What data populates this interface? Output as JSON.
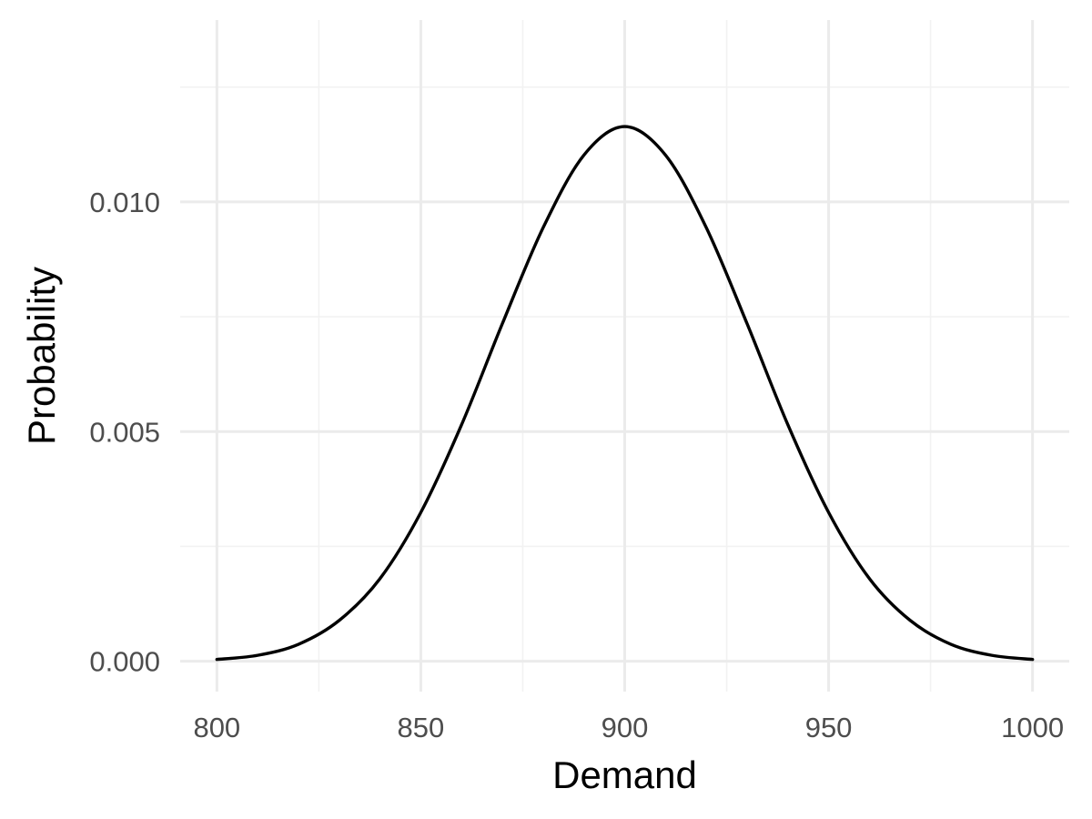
{
  "chart_data": {
    "type": "line",
    "title": "",
    "xlabel": "Demand",
    "ylabel": "Probability",
    "xlim": [
      791,
      1009
    ],
    "ylim": [
      -0.00066,
      0.01396
    ],
    "x_ticks": [
      800,
      850,
      900,
      950,
      1000
    ],
    "x_tick_labels": [
      "800",
      "850",
      "900",
      "950",
      "1000"
    ],
    "x_minor_ticks": [
      825,
      875,
      925,
      975
    ],
    "y_ticks": [
      0.0,
      0.005,
      0.01
    ],
    "y_tick_labels": [
      "0.000",
      "0.005",
      "0.010"
    ],
    "y_minor_ticks": [
      0.0025,
      0.0075,
      0.0125
    ],
    "grid": true,
    "legend": "none",
    "series": [
      {
        "color": "#000000",
        "x": [
          800,
          810,
          820,
          830,
          840,
          850,
          860,
          870,
          880,
          890,
          900,
          910,
          920,
          930,
          940,
          950,
          960,
          970,
          980,
          990,
          1000
        ],
        "y": [
          4e-05,
          0.00013,
          0.00037,
          0.00089,
          0.0018,
          0.00324,
          0.00515,
          0.00735,
          0.00944,
          0.01102,
          0.01164,
          0.01102,
          0.00944,
          0.00735,
          0.00515,
          0.00324,
          0.0018,
          0.00089,
          0.00037,
          0.00013,
          4e-05
        ]
      }
    ]
  }
}
